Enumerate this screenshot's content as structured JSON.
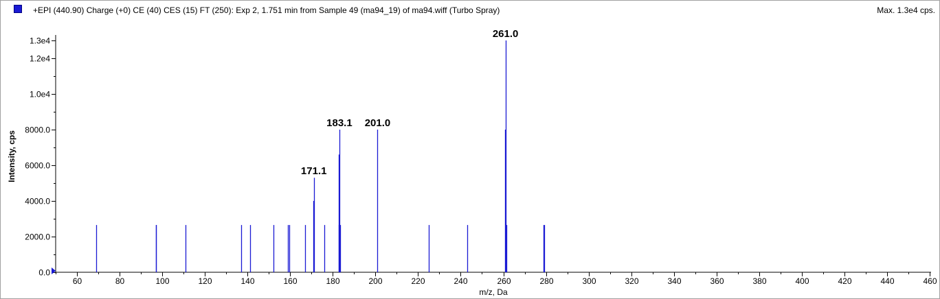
{
  "header": {
    "title": "+EPI (440.90) Charge (+0) CE (40) CES (15) FT (250): Exp 2, 1.751 min from Sample 49 (ma94_19) of ma94.wiff (Turbo Spray)",
    "max_label": "Max. 1.3e4 cps."
  },
  "colors": {
    "series": "#1a1ad4",
    "axis": "#000000",
    "frame": "#a0a0a0"
  },
  "chart_data": {
    "type": "bar",
    "xlabel": "m/z, Da",
    "ylabel": "Intensity, cps",
    "xlim": [
      50,
      460
    ],
    "ylim": [
      0,
      13000
    ],
    "grid": false,
    "x_ticks": [
      60,
      80,
      100,
      120,
      140,
      160,
      180,
      200,
      220,
      240,
      260,
      280,
      300,
      320,
      340,
      360,
      380,
      400,
      420,
      440,
      460
    ],
    "y_ticks": [
      {
        "value": 0,
        "label": "0.0"
      },
      {
        "value": 2000,
        "label": "2000.0"
      },
      {
        "value": 4000,
        "label": "4000.0"
      },
      {
        "value": 6000,
        "label": "6000.0"
      },
      {
        "value": 8000,
        "label": "8000.0"
      },
      {
        "value": 10000,
        "label": "1.0e4"
      },
      {
        "value": 12000,
        "label": "1.2e4"
      },
      {
        "value": 13000,
        "label": "1.3e4"
      }
    ],
    "peaks": [
      {
        "mz": 69.0,
        "intensity": 2650
      },
      {
        "mz": 96.9,
        "intensity": 2650
      },
      {
        "mz": 97.2,
        "intensity": 2650
      },
      {
        "mz": 110.9,
        "intensity": 2650
      },
      {
        "mz": 137.0,
        "intensity": 2650
      },
      {
        "mz": 141.1,
        "intensity": 2650
      },
      {
        "mz": 152.1,
        "intensity": 2650
      },
      {
        "mz": 158.9,
        "intensity": 2650
      },
      {
        "mz": 159.5,
        "intensity": 2650
      },
      {
        "mz": 167.1,
        "intensity": 2650
      },
      {
        "mz": 170.9,
        "intensity": 4000
      },
      {
        "mz": 171.1,
        "intensity": 5300
      },
      {
        "mz": 176.0,
        "intensity": 2650
      },
      {
        "mz": 182.7,
        "intensity": 2650
      },
      {
        "mz": 182.9,
        "intensity": 6600
      },
      {
        "mz": 183.1,
        "intensity": 8000
      },
      {
        "mz": 183.4,
        "intensity": 2650
      },
      {
        "mz": 201.0,
        "intensity": 8000
      },
      {
        "mz": 225.1,
        "intensity": 2650
      },
      {
        "mz": 243.1,
        "intensity": 2650
      },
      {
        "mz": 260.8,
        "intensity": 8000
      },
      {
        "mz": 261.0,
        "intensity": 13000
      },
      {
        "mz": 261.3,
        "intensity": 2650
      },
      {
        "mz": 279.0,
        "intensity": 2650
      },
      {
        "mz": 279.3,
        "intensity": 2650
      }
    ],
    "labeled_peaks": [
      {
        "mz": 171.1,
        "intensity": 5300,
        "label": "171.1"
      },
      {
        "mz": 183.1,
        "intensity": 8000,
        "label": "183.1"
      },
      {
        "mz": 201.0,
        "intensity": 8000,
        "label": "201.0"
      },
      {
        "mz": 261.0,
        "intensity": 13000,
        "label": "261.0"
      }
    ]
  }
}
